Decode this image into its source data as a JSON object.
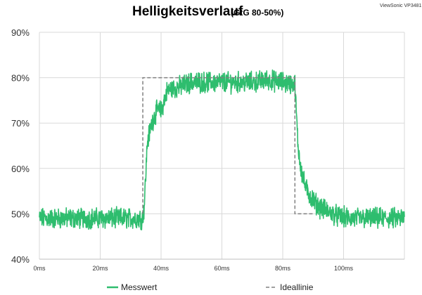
{
  "watermark": "ViewSonic VP3481",
  "chart_data": {
    "type": "line",
    "title": "Helligkeitsverlauf",
    "subtitle": "(GtG 80-50%)",
    "xlabel": "",
    "ylabel": "",
    "xlim": [
      0,
      120
    ],
    "ylim": [
      40,
      90
    ],
    "x_ticks": [
      0,
      20,
      40,
      60,
      80,
      100
    ],
    "x_tick_labels": [
      "0ms",
      "20ms",
      "40ms",
      "60ms",
      "80ms",
      "100ms"
    ],
    "y_ticks": [
      40,
      50,
      60,
      70,
      80,
      90
    ],
    "y_tick_labels": [
      "40%",
      "50%",
      "60%",
      "70%",
      "80%",
      "90%"
    ],
    "grid": true,
    "legend_position": "bottom",
    "series": [
      {
        "name": "Messwert",
        "color": "#2ebd6e",
        "style": "noisy-band",
        "x": [
          0,
          34,
          34.5,
          35.5,
          37,
          38,
          39,
          40,
          41,
          42,
          43,
          46,
          50,
          55,
          60,
          65,
          70,
          75,
          80,
          84,
          84.5,
          85,
          86,
          87,
          88,
          90,
          92,
          95,
          98,
          102,
          106,
          110,
          120
        ],
        "y": [
          49,
          49,
          52,
          66,
          70,
          72,
          73,
          72.5,
          75,
          77,
          77.5,
          78,
          79,
          79,
          79,
          79,
          79,
          79.5,
          79,
          78.5,
          72,
          65,
          60,
          57,
          55,
          53,
          51.5,
          50.5,
          49.5,
          49,
          49,
          49,
          49
        ],
        "noise_amplitude": 1.8
      },
      {
        "name": "Ideallinie",
        "color": "#808080",
        "style": "dashed",
        "x": [
          34,
          34,
          84,
          84,
          90
        ],
        "y": [
          50,
          80,
          80,
          50,
          50
        ]
      }
    ]
  }
}
